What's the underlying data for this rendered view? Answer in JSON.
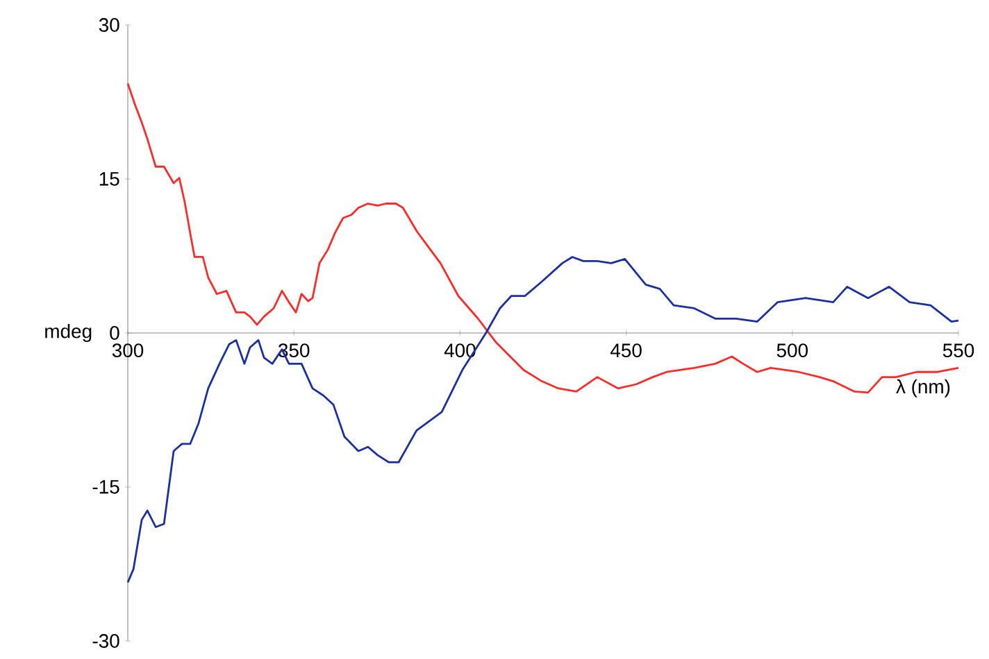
{
  "chart_data": {
    "type": "line",
    "xlabel": "λ (nm)",
    "ylabel": "mdeg",
    "xlim": [
      300,
      550
    ],
    "ylim": [
      -30,
      30
    ],
    "xticks": [
      300,
      350,
      400,
      450,
      500,
      550
    ],
    "yticks": [
      -30,
      -15,
      0,
      15,
      30
    ],
    "grid": false,
    "marker": "none",
    "line_style": "solid",
    "series": [
      {
        "color": "#ff2a2a",
        "x": [
          300,
          302.1,
          304.2,
          305.9,
          308.4,
          310.9,
          313.8,
          315.5,
          317.1,
          318.8,
          320.1,
          322.6,
          324.2,
          326.8,
          329.7,
          332.6,
          335.1,
          336.8,
          338.9,
          341,
          343.9,
          346.4,
          348.5,
          350.6,
          352.3,
          354.3,
          355.6,
          357.7,
          360.2,
          362.3,
          364.8,
          367.3,
          369.4,
          372.3,
          375.2,
          377.7,
          380.7,
          382.8,
          387,
          391.1,
          394.1,
          399.5,
          405.4,
          410.8,
          419.1,
          424.6,
          429.6,
          435,
          441.3,
          447.6,
          453,
          458,
          462.2,
          470.5,
          476.8,
          481.8,
          485.2,
          489.4,
          493.5,
          501.9,
          508.2,
          512.3,
          518.6,
          522.8,
          527,
          531.2,
          537.4,
          543.7,
          550
        ],
        "values": [
          24.3,
          22.3,
          20.5,
          18.9,
          16.2,
          16.2,
          14.6,
          15.1,
          12.8,
          9.7,
          7.4,
          7.4,
          5.4,
          3.8,
          4.1,
          2.0,
          2.0,
          1.6,
          0.8,
          1.6,
          2.4,
          4.1,
          3.0,
          2.0,
          3.8,
          3.1,
          3.4,
          6.8,
          8.1,
          9.7,
          11.2,
          11.5,
          12.2,
          12.6,
          12.4,
          12.6,
          12.6,
          12.2,
          9.9,
          8.1,
          6.8,
          3.6,
          1.4,
          -0.9,
          -3.6,
          -4.7,
          -5.4,
          -5.7,
          -4.3,
          -5.4,
          -5.0,
          -4.3,
          -3.8,
          -3.4,
          -3.0,
          -2.3,
          -3.0,
          -3.8,
          -3.4,
          -3.8,
          -4.3,
          -4.7,
          -5.7,
          -5.8,
          -4.3,
          -4.3,
          -3.8,
          -3.8,
          -3.4
        ]
      },
      {
        "color": "#1a2fa0",
        "x": [
          300,
          301.7,
          304.2,
          305.9,
          308.4,
          310.9,
          313.8,
          316.3,
          318.8,
          321.3,
          324.2,
          327.6,
          330.5,
          332.6,
          335.1,
          336.8,
          339.3,
          341,
          343.5,
          346.4,
          348.5,
          352.3,
          355.6,
          358.9,
          361.9,
          365.2,
          369.4,
          372.3,
          375.2,
          378.6,
          381.5,
          386.9,
          394.5,
          400.7,
          407.8,
          412,
          415.4,
          419.5,
          424.6,
          430.8,
          433.8,
          437.1,
          441.3,
          445.5,
          449.6,
          455.9,
          460.1,
          464.3,
          470.5,
          476.8,
          483.1,
          489.4,
          495.6,
          504,
          512.3,
          516.5,
          522.8,
          529.1,
          535.3,
          541.6,
          547.9,
          550
        ],
        "values": [
          -24.3,
          -23,
          -18.2,
          -17.3,
          -18.9,
          -18.6,
          -11.5,
          -10.8,
          -10.8,
          -8.8,
          -5.4,
          -3.0,
          -1.1,
          -0.7,
          -3.0,
          -1.4,
          -0.7,
          -2.4,
          -3.0,
          -1.6,
          -3.0,
          -3.0,
          -5.4,
          -6.1,
          -7.0,
          -10.1,
          -11.5,
          -11.1,
          -11.9,
          -12.6,
          -12.6,
          -9.5,
          -7.7,
          -3.6,
          0,
          2.4,
          3.6,
          3.6,
          5.0,
          6.8,
          7.4,
          7.0,
          7.0,
          6.8,
          7.2,
          4.7,
          4.3,
          2.7,
          2.4,
          1.4,
          1.4,
          1.1,
          3.0,
          3.4,
          3.0,
          4.5,
          3.4,
          4.5,
          3.0,
          2.7,
          1.1,
          1.2
        ]
      }
    ]
  }
}
